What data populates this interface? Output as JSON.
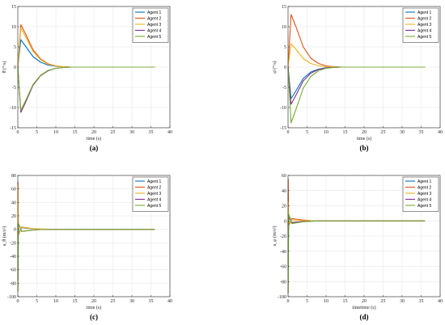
{
  "colors": {
    "Agent 1": "#0072BD",
    "Agent 2": "#D95319",
    "Agent 3": "#EDB120",
    "Agent 4": "#7E2F8E",
    "Agent 5": "#77AC30"
  },
  "chart_data": [
    {
      "type": "line",
      "caption": "(a)",
      "xlabel": "time (s)",
      "ylabel": "θ̇ (°/s)",
      "xlim": [
        0,
        40
      ],
      "ylim": [
        -15,
        15
      ],
      "xticks": [
        0,
        5,
        10,
        15,
        20,
        25,
        30,
        35,
        40
      ],
      "yticks": [
        -15,
        -10,
        -5,
        0,
        5,
        10,
        15
      ],
      "grid": true,
      "legend": "top-right",
      "x_end": 36,
      "series": [
        {
          "name": "Agent 1",
          "values": [
            [
              0,
              0
            ],
            [
              0.8,
              6.8
            ],
            [
              2,
              5.2
            ],
            [
              4,
              2.6
            ],
            [
              6,
              1.2
            ],
            [
              8,
              0.5
            ],
            [
              10,
              0.2
            ],
            [
              12,
              0.05
            ],
            [
              14,
              0
            ],
            [
              36,
              0
            ]
          ]
        },
        {
          "name": "Agent 2",
          "values": [
            [
              0,
              0
            ],
            [
              0.8,
              10.5
            ],
            [
              2,
              8.3
            ],
            [
              4,
              4.3
            ],
            [
              6,
              2
            ],
            [
              8,
              0.8
            ],
            [
              10,
              0.3
            ],
            [
              12,
              0.1
            ],
            [
              14,
              0
            ],
            [
              36,
              0
            ]
          ]
        },
        {
          "name": "Agent 3",
          "values": [
            [
              0,
              0
            ],
            [
              0.8,
              9.7
            ],
            [
              2,
              7.6
            ],
            [
              4,
              3.9
            ],
            [
              6,
              1.8
            ],
            [
              8,
              0.7
            ],
            [
              10,
              0.25
            ],
            [
              12,
              0.08
            ],
            [
              14,
              0
            ],
            [
              36,
              0
            ]
          ]
        },
        {
          "name": "Agent 4",
          "values": [
            [
              0,
              0
            ],
            [
              0.8,
              -11.2
            ],
            [
              2,
              -8.8
            ],
            [
              4,
              -4.5
            ],
            [
              6,
              -2.1
            ],
            [
              8,
              -0.9
            ],
            [
              10,
              -0.3
            ],
            [
              12,
              -0.1
            ],
            [
              14,
              0
            ],
            [
              36,
              0
            ]
          ]
        },
        {
          "name": "Agent 5",
          "values": [
            [
              0,
              0
            ],
            [
              0.8,
              -10.7
            ],
            [
              2,
              -8.4
            ],
            [
              4,
              -4.3
            ],
            [
              6,
              -2
            ],
            [
              8,
              -0.8
            ],
            [
              10,
              -0.3
            ],
            [
              12,
              -0.1
            ],
            [
              14,
              0
            ],
            [
              36,
              0
            ]
          ]
        }
      ]
    },
    {
      "type": "line",
      "caption": "(b)",
      "xlabel": "time (s)",
      "ylabel": "φ̇ (°/s)",
      "xlim": [
        0,
        40
      ],
      "ylim": [
        -15,
        15
      ],
      "xticks": [
        0,
        5,
        10,
        15,
        20,
        25,
        30,
        35,
        40
      ],
      "yticks": [
        -15,
        -10,
        -5,
        0,
        5,
        10,
        15
      ],
      "grid": true,
      "legend": "top-right",
      "x_end": 36,
      "series": [
        {
          "name": "Agent 1",
          "values": [
            [
              0,
              0
            ],
            [
              0.8,
              -7.8
            ],
            [
              2,
              -6
            ],
            [
              4,
              -2.8
            ],
            [
              6,
              -1.2
            ],
            [
              8,
              -0.5
            ],
            [
              10,
              -0.15
            ],
            [
              12,
              -0.05
            ],
            [
              14,
              0
            ],
            [
              36,
              0
            ]
          ]
        },
        {
          "name": "Agent 2",
          "values": [
            [
              0,
              0
            ],
            [
              0.8,
              13
            ],
            [
              2,
              10.2
            ],
            [
              4,
              5
            ],
            [
              6,
              2.2
            ],
            [
              8,
              0.9
            ],
            [
              10,
              0.3
            ],
            [
              12,
              0.1
            ],
            [
              14,
              0
            ],
            [
              36,
              0
            ]
          ]
        },
        {
          "name": "Agent 3",
          "values": [
            [
              0,
              0
            ],
            [
              0.8,
              5.8
            ],
            [
              2,
              4.5
            ],
            [
              4,
              2.1
            ],
            [
              6,
              0.9
            ],
            [
              8,
              0.35
            ],
            [
              10,
              0.1
            ],
            [
              12,
              0.03
            ],
            [
              14,
              0
            ],
            [
              36,
              0
            ]
          ]
        },
        {
          "name": "Agent 4",
          "values": [
            [
              0,
              0
            ],
            [
              0.8,
              -9.2
            ],
            [
              2,
              -7.1
            ],
            [
              4,
              -3.4
            ],
            [
              6,
              -1.5
            ],
            [
              8,
              -0.6
            ],
            [
              10,
              -0.2
            ],
            [
              12,
              -0.06
            ],
            [
              14,
              0
            ],
            [
              36,
              0
            ]
          ]
        },
        {
          "name": "Agent 5",
          "values": [
            [
              0,
              0
            ],
            [
              0.8,
              -13.8
            ],
            [
              2,
              -10.7
            ],
            [
              4,
              -5.2
            ],
            [
              6,
              -2.3
            ],
            [
              8,
              -0.9
            ],
            [
              10,
              -0.3
            ],
            [
              12,
              -0.1
            ],
            [
              14,
              0
            ],
            [
              36,
              0
            ]
          ]
        }
      ]
    },
    {
      "type": "line",
      "caption": "(c)",
      "xlabel": "time (s)",
      "ylabel": "a_θ (m/s²)",
      "xlim": [
        0,
        40
      ],
      "ylim": [
        -100,
        80
      ],
      "xticks": [
        0,
        5,
        10,
        15,
        20,
        25,
        30,
        35,
        40
      ],
      "yticks": [
        -100,
        -80,
        -60,
        -40,
        -20,
        0,
        20,
        40,
        60,
        80
      ],
      "grid": true,
      "legend": "top-right",
      "x_end": 36,
      "series": [
        {
          "name": "Agent 1",
          "values": [
            [
              0,
              0
            ],
            [
              0.05,
              45
            ],
            [
              0.15,
              -5
            ],
            [
              0.6,
              -2
            ],
            [
              1,
              2.5
            ],
            [
              2,
              1.8
            ],
            [
              4,
              0.8
            ],
            [
              6,
              0.3
            ],
            [
              8,
              0.1
            ],
            [
              10,
              0
            ],
            [
              36,
              0
            ]
          ]
        },
        {
          "name": "Agent 2",
          "values": [
            [
              0,
              0
            ],
            [
              0.05,
              70
            ],
            [
              0.15,
              -8
            ],
            [
              0.6,
              -3
            ],
            [
              1,
              3.5
            ],
            [
              2,
              2.5
            ],
            [
              4,
              1.1
            ],
            [
              6,
              0.4
            ],
            [
              8,
              0.1
            ],
            [
              10,
              0
            ],
            [
              36,
              0
            ]
          ]
        },
        {
          "name": "Agent 3",
          "values": [
            [
              0,
              0
            ],
            [
              0.05,
              65
            ],
            [
              0.15,
              -7
            ],
            [
              0.6,
              -2.5
            ],
            [
              1,
              3
            ],
            [
              2,
              2.2
            ],
            [
              4,
              1
            ],
            [
              6,
              0.4
            ],
            [
              8,
              0.1
            ],
            [
              10,
              0
            ],
            [
              36,
              0
            ]
          ]
        },
        {
          "name": "Agent 4",
          "values": [
            [
              0,
              0
            ],
            [
              0.05,
              -75
            ],
            [
              0.15,
              8
            ],
            [
              0.6,
              3
            ],
            [
              1,
              -3.2
            ],
            [
              2,
              -2.4
            ],
            [
              4,
              -1.1
            ],
            [
              6,
              -0.4
            ],
            [
              8,
              -0.1
            ],
            [
              10,
              0
            ],
            [
              36,
              0
            ]
          ]
        },
        {
          "name": "Agent 5",
          "values": [
            [
              0,
              0
            ],
            [
              0.05,
              -92
            ],
            [
              0.15,
              9
            ],
            [
              0.6,
              3.2
            ],
            [
              1,
              -3
            ],
            [
              2,
              -2.3
            ],
            [
              4,
              -1
            ],
            [
              6,
              -0.4
            ],
            [
              8,
              -0.1
            ],
            [
              10,
              0
            ],
            [
              36,
              0
            ]
          ]
        }
      ]
    },
    {
      "type": "line",
      "caption": "(d)",
      "xlabel": "timetime (s)",
      "ylabel": "a_φ (m/s²)",
      "xlim": [
        0,
        40
      ],
      "ylim": [
        -100,
        60
      ],
      "xticks": [
        0,
        5,
        10,
        15,
        20,
        25,
        30,
        35,
        40
      ],
      "yticks": [
        -100,
        -80,
        -60,
        -40,
        -20,
        0,
        20,
        40,
        60
      ],
      "grid": true,
      "legend": "top-right",
      "x_end": 36,
      "series": [
        {
          "name": "Agent 1",
          "values": [
            [
              0,
              0
            ],
            [
              0.05,
              -60
            ],
            [
              0.15,
              6
            ],
            [
              0.6,
              2
            ],
            [
              1,
              -2.8
            ],
            [
              2,
              -2
            ],
            [
              4,
              -0.9
            ],
            [
              6,
              -0.3
            ],
            [
              8,
              -0.1
            ],
            [
              10,
              0
            ],
            [
              36,
              0
            ]
          ]
        },
        {
          "name": "Agent 2",
          "values": [
            [
              0,
              0
            ],
            [
              0.05,
              55
            ],
            [
              0.15,
              -6
            ],
            [
              0.6,
              -2
            ],
            [
              1,
              3.2
            ],
            [
              2,
              2.4
            ],
            [
              4,
              1.1
            ],
            [
              6,
              0.4
            ],
            [
              8,
              0.1
            ],
            [
              10,
              0
            ],
            [
              36,
              0
            ]
          ]
        },
        {
          "name": "Agent 3",
          "values": [
            [
              0,
              0
            ],
            [
              0.05,
              25
            ],
            [
              0.15,
              -3
            ],
            [
              0.6,
              -1
            ],
            [
              1,
              1.5
            ],
            [
              2,
              1.1
            ],
            [
              4,
              0.5
            ],
            [
              6,
              0.2
            ],
            [
              8,
              0.05
            ],
            [
              10,
              0
            ],
            [
              36,
              0
            ]
          ]
        },
        {
          "name": "Agent 4",
          "values": [
            [
              0,
              0
            ],
            [
              0.05,
              -45
            ],
            [
              0.15,
              5
            ],
            [
              0.6,
              1.5
            ],
            [
              1,
              -2.2
            ],
            [
              2,
              -1.6
            ],
            [
              4,
              -0.7
            ],
            [
              6,
              -0.3
            ],
            [
              8,
              -0.1
            ],
            [
              10,
              0
            ],
            [
              36,
              0
            ]
          ]
        },
        {
          "name": "Agent 5",
          "values": [
            [
              0,
              0
            ],
            [
              0.05,
              -95
            ],
            [
              0.15,
              9
            ],
            [
              0.6,
              3
            ],
            [
              1,
              -3.6
            ],
            [
              2,
              -2.7
            ],
            [
              4,
              -1.2
            ],
            [
              6,
              -0.5
            ],
            [
              8,
              -0.1
            ],
            [
              10,
              0
            ],
            [
              36,
              0
            ]
          ]
        }
      ]
    }
  ]
}
